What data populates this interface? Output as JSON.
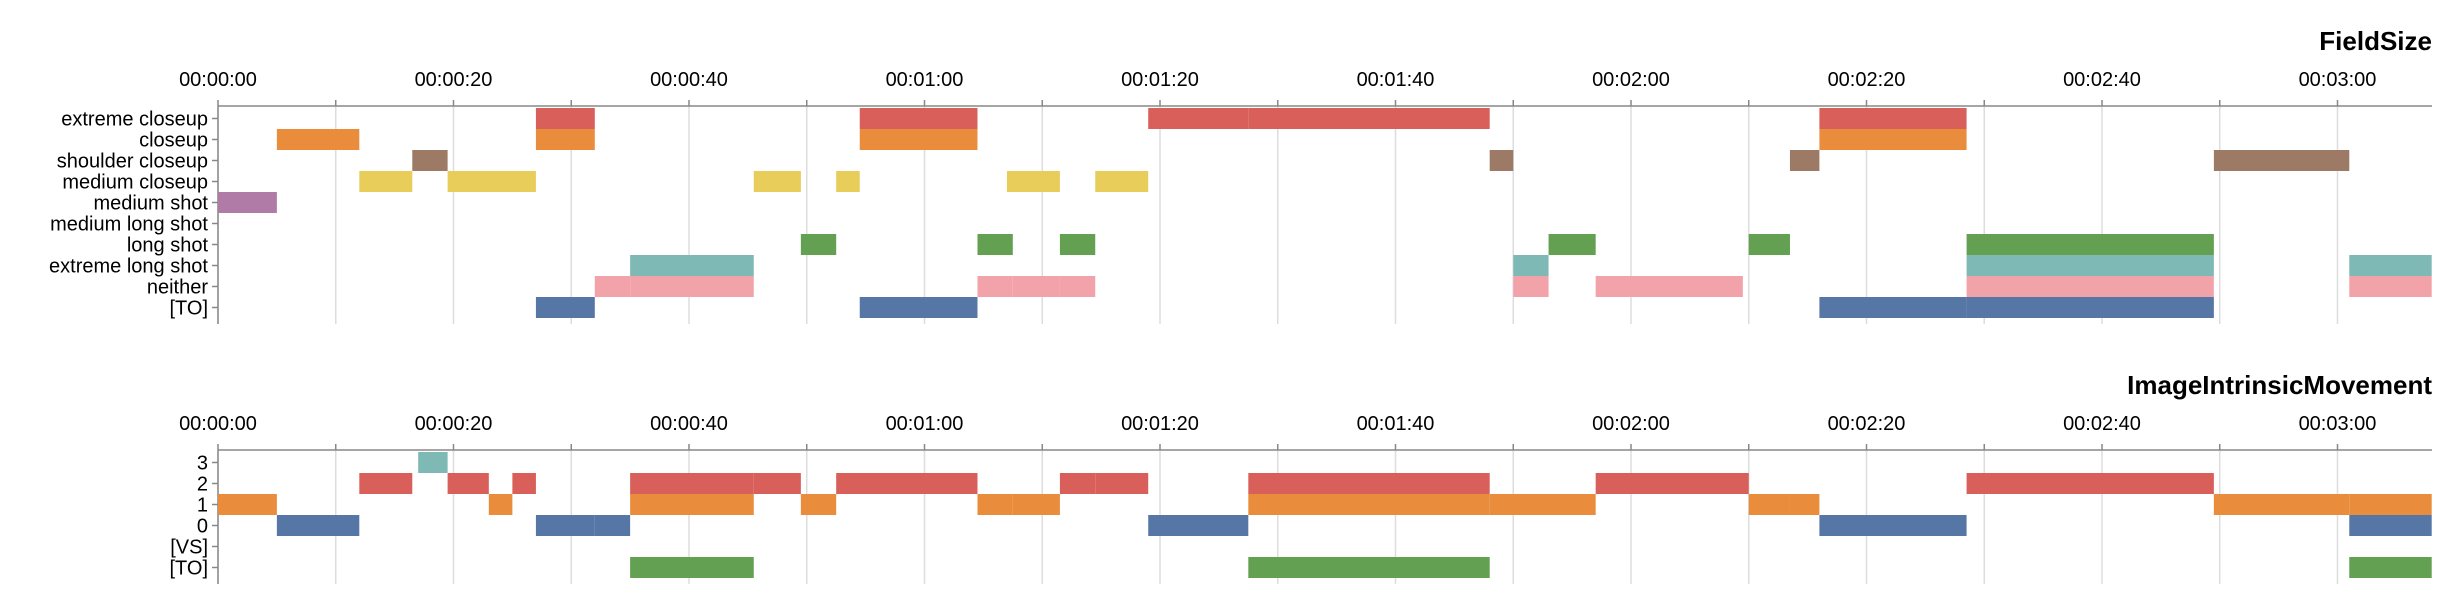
{
  "chart_data": [
    {
      "type": "timeline",
      "title": "FieldSize",
      "x_ticks": [
        "00:00:00",
        "00:00:20",
        "00:00:40",
        "00:01:00",
        "00:01:20",
        "00:01:40",
        "00:02:00",
        "00:02:20",
        "00:02:40",
        "00:03:00"
      ],
      "x_range": [
        0,
        188
      ],
      "categories": [
        "extreme closeup",
        "closeup",
        "shoulder closeup",
        "medium closeup",
        "medium shot",
        "medium long shot",
        "long shot",
        "extreme long shot",
        "neither",
        "[TO]"
      ],
      "segments": [
        {
          "category": "extreme closeup",
          "start": 27.0,
          "end": 32.0
        },
        {
          "category": "extreme closeup",
          "start": 54.5,
          "end": 64.5
        },
        {
          "category": "extreme closeup",
          "start": 79.0,
          "end": 87.5
        },
        {
          "category": "extreme closeup",
          "start": 87.5,
          "end": 108.0
        },
        {
          "category": "extreme closeup",
          "start": 136.0,
          "end": 148.5
        },
        {
          "category": "closeup",
          "start": 5.0,
          "end": 12.0
        },
        {
          "category": "closeup",
          "start": 27.0,
          "end": 32.0
        },
        {
          "category": "closeup",
          "start": 54.5,
          "end": 64.5
        },
        {
          "category": "closeup",
          "start": 136.0,
          "end": 148.5
        },
        {
          "category": "shoulder closeup",
          "start": 16.5,
          "end": 19.5
        },
        {
          "category": "shoulder closeup",
          "start": 108.0,
          "end": 110.0
        },
        {
          "category": "shoulder closeup",
          "start": 133.5,
          "end": 136.0
        },
        {
          "category": "shoulder closeup",
          "start": 169.5,
          "end": 181.0
        },
        {
          "category": "medium closeup",
          "start": 12.0,
          "end": 16.5
        },
        {
          "category": "medium closeup",
          "start": 19.5,
          "end": 27.0
        },
        {
          "category": "medium closeup",
          "start": 45.5,
          "end": 49.5
        },
        {
          "category": "medium closeup",
          "start": 52.5,
          "end": 54.5
        },
        {
          "category": "medium closeup",
          "start": 67.0,
          "end": 71.5
        },
        {
          "category": "medium closeup",
          "start": 74.5,
          "end": 79.0
        },
        {
          "category": "medium shot",
          "start": 0.0,
          "end": 5.0
        },
        {
          "category": "long shot",
          "start": 49.5,
          "end": 52.5
        },
        {
          "category": "long shot",
          "start": 64.5,
          "end": 67.5
        },
        {
          "category": "long shot",
          "start": 71.5,
          "end": 74.5
        },
        {
          "category": "long shot",
          "start": 113.0,
          "end": 117.0
        },
        {
          "category": "long shot",
          "start": 130.0,
          "end": 133.5
        },
        {
          "category": "long shot",
          "start": 148.5,
          "end": 169.5
        },
        {
          "category": "extreme long shot",
          "start": 35.0,
          "end": 45.5
        },
        {
          "category": "extreme long shot",
          "start": 110.0,
          "end": 113.0
        },
        {
          "category": "extreme long shot",
          "start": 148.5,
          "end": 169.5
        },
        {
          "category": "extreme long shot",
          "start": 181.0,
          "end": 188.0
        },
        {
          "category": "neither",
          "start": 32.0,
          "end": 35.0
        },
        {
          "category": "neither",
          "start": 35.0,
          "end": 45.5
        },
        {
          "category": "neither",
          "start": 64.5,
          "end": 67.5
        },
        {
          "category": "neither",
          "start": 67.5,
          "end": 71.5
        },
        {
          "category": "neither",
          "start": 71.5,
          "end": 74.5
        },
        {
          "category": "neither",
          "start": 110.0,
          "end": 113.0
        },
        {
          "category": "neither",
          "start": 117.0,
          "end": 129.5
        },
        {
          "category": "neither",
          "start": 148.5,
          "end": 169.5
        },
        {
          "category": "neither",
          "start": 181.0,
          "end": 188.0
        },
        {
          "category": "[TO]",
          "start": 27.0,
          "end": 32.0
        },
        {
          "category": "[TO]",
          "start": 54.5,
          "end": 64.5
        },
        {
          "category": "[TO]",
          "start": 136.0,
          "end": 148.5
        },
        {
          "category": "[TO]",
          "start": 148.5,
          "end": 169.5
        }
      ],
      "colors": {
        "extreme closeup": "#d95f5a",
        "closeup": "#e98d3c",
        "shoulder closeup": "#9c7a66",
        "medium closeup": "#e8cd5a",
        "medium shot": "#b07ba6",
        "medium long shot": "#bbbbbb",
        "long shot": "#63a052",
        "extreme long shot": "#7fb9b5",
        "neither": "#f2a3aa",
        "[TO]": "#5676a6"
      }
    },
    {
      "type": "timeline",
      "title": "ImageIntrinsicMovement",
      "x_ticks": [
        "00:00:00",
        "00:00:20",
        "00:00:40",
        "00:01:00",
        "00:01:20",
        "00:01:40",
        "00:02:00",
        "00:02:20",
        "00:02:40",
        "00:03:00"
      ],
      "x_range": [
        0,
        188
      ],
      "categories": [
        "3",
        "2",
        "1",
        "0",
        "[VS]",
        "[TO]"
      ],
      "segments": [
        {
          "category": "3",
          "start": 17.0,
          "end": 19.5
        },
        {
          "category": "2",
          "start": 12.0,
          "end": 16.5
        },
        {
          "category": "2",
          "start": 19.5,
          "end": 23.0
        },
        {
          "category": "2",
          "start": 25.0,
          "end": 27.0
        },
        {
          "category": "2",
          "start": 35.0,
          "end": 45.5
        },
        {
          "category": "2",
          "start": 45.5,
          "end": 49.5
        },
        {
          "category": "2",
          "start": 52.5,
          "end": 64.5
        },
        {
          "category": "2",
          "start": 71.5,
          "end": 74.5
        },
        {
          "category": "2",
          "start": 74.5,
          "end": 79.0
        },
        {
          "category": "2",
          "start": 87.5,
          "end": 108.0
        },
        {
          "category": "2",
          "start": 117.0,
          "end": 130.0
        },
        {
          "category": "2",
          "start": 148.5,
          "end": 169.5
        },
        {
          "category": "1",
          "start": 0.0,
          "end": 5.0
        },
        {
          "category": "1",
          "start": 23.0,
          "end": 25.0
        },
        {
          "category": "1",
          "start": 35.0,
          "end": 45.5
        },
        {
          "category": "1",
          "start": 49.5,
          "end": 52.5
        },
        {
          "category": "1",
          "start": 64.5,
          "end": 67.5
        },
        {
          "category": "1",
          "start": 67.5,
          "end": 71.5
        },
        {
          "category": "1",
          "start": 87.5,
          "end": 108.0
        },
        {
          "category": "1",
          "start": 108.0,
          "end": 117.0
        },
        {
          "category": "1",
          "start": 130.0,
          "end": 133.5
        },
        {
          "category": "1",
          "start": 133.5,
          "end": 136.0
        },
        {
          "category": "1",
          "start": 169.5,
          "end": 181.0
        },
        {
          "category": "1",
          "start": 181.0,
          "end": 188.0
        },
        {
          "category": "0",
          "start": 5.0,
          "end": 12.0
        },
        {
          "category": "0",
          "start": 27.0,
          "end": 32.0
        },
        {
          "category": "0",
          "start": 32.0,
          "end": 35.0
        },
        {
          "category": "0",
          "start": 79.0,
          "end": 87.5
        },
        {
          "category": "0",
          "start": 136.0,
          "end": 148.5
        },
        {
          "category": "0",
          "start": 181.0,
          "end": 188.0
        },
        {
          "category": "[TO]",
          "start": 35.0,
          "end": 45.5
        },
        {
          "category": "[TO]",
          "start": 87.5,
          "end": 108.0
        },
        {
          "category": "[TO]",
          "start": 181.0,
          "end": 188.0
        }
      ],
      "colors": {
        "3": "#7fb9b5",
        "2": "#d95f5a",
        "1": "#e98d3c",
        "0": "#5676a6",
        "[VS]": "#bbbbbb",
        "[TO]": "#63a052"
      }
    }
  ]
}
